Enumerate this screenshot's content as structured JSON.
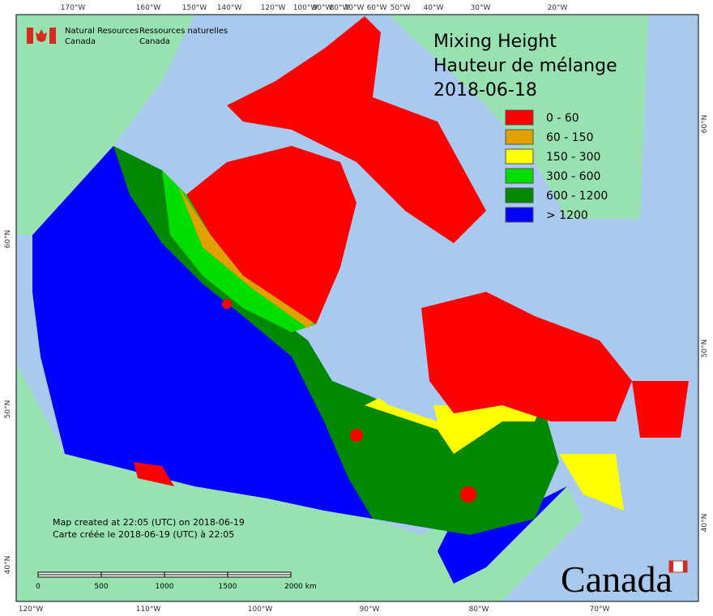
{
  "header": {
    "agency_en": [
      "Natural Resources",
      "Canada"
    ],
    "agency_fr": [
      "Ressources naturelles",
      "Canada"
    ]
  },
  "title": [
    "Mixing Height",
    "Hauteur de mélange",
    "2018-06-18"
  ],
  "legend": [
    {
      "label": "0 - 60",
      "color": "#ff0000"
    },
    {
      "label": "60 - 150",
      "color": "#e0a000"
    },
    {
      "label": "150 - 300",
      "color": "#ffff00"
    },
    {
      "label": "300 - 600",
      "color": "#00dd00"
    },
    {
      "label": "600 - 1200",
      "color": "#008800"
    },
    {
      "label": "> 1200",
      "color": "#0000ff"
    }
  ],
  "footer": [
    "Map created at 22:05 (UTC) on 2018-06-19",
    "Carte créée le 2018-06-19 (UTC) à 22:05"
  ],
  "scale_bar": [
    "0",
    "500",
    "1000",
    "1500",
    "2000 km"
  ],
  "wordmark": "Canada",
  "graticule": {
    "top": [
      "170°W",
      "160°W",
      "150°W",
      "140°W",
      "120°W",
      "100°W",
      "90°W",
      "80°W",
      "70°W",
      "60°W",
      "50°W",
      "40°W",
      "30°W",
      "20°W"
    ],
    "bottom": [
      "120°W",
      "110°W",
      "100°W",
      "90°W",
      "80°W",
      "70°W"
    ],
    "left": [
      "60°N",
      "50°N",
      "40°N"
    ],
    "right": [
      "60°N",
      "50°N",
      "40°N"
    ]
  }
}
